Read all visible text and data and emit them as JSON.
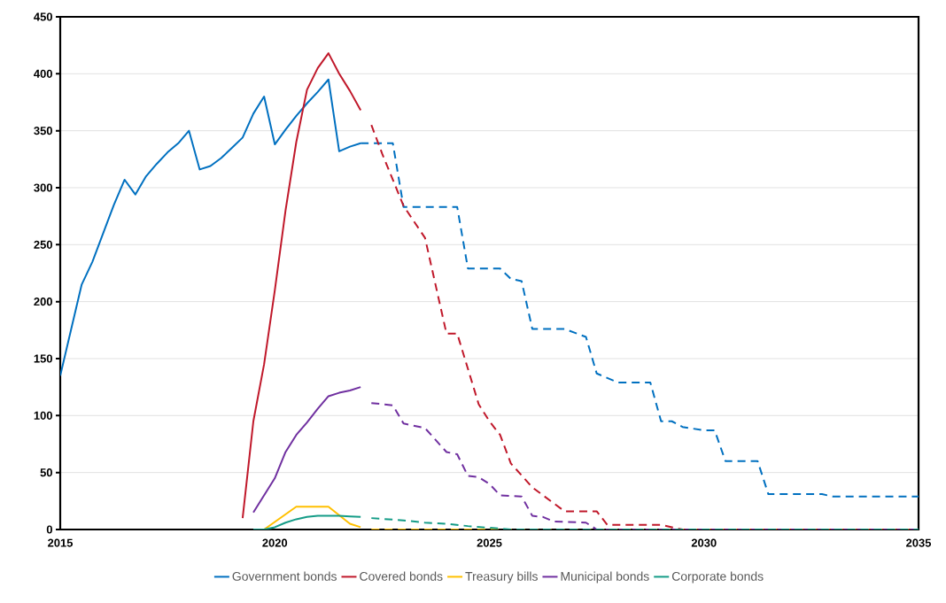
{
  "chart_data": {
    "type": "line",
    "xlim": [
      2015,
      2035
    ],
    "ylim": [
      0,
      450
    ],
    "xticks": [
      2015,
      2020,
      2025,
      2030,
      2035
    ],
    "yticks": [
      0,
      50,
      100,
      150,
      200,
      250,
      300,
      350,
      400,
      450
    ],
    "grid": "y",
    "legend": "bottom",
    "marker": "none",
    "series": [
      {
        "name": "Government bonds",
        "color": "#0070c0",
        "line_style": "solid",
        "x": [
          2015.0,
          2015.25,
          2015.5,
          2015.75,
          2016.0,
          2016.25,
          2016.5,
          2016.75,
          2017.0,
          2017.25,
          2017.5,
          2017.75,
          2018.0,
          2018.25,
          2018.5,
          2018.75,
          2019.0,
          2019.25,
          2019.5,
          2019.75,
          2020.0,
          2020.25,
          2020.5,
          2020.75,
          2021.0,
          2021.25,
          2021.5,
          2021.75,
          2022.0
        ],
        "values": [
          135,
          175,
          215,
          235,
          260,
          285,
          307,
          294,
          310,
          321,
          331,
          339,
          350,
          316,
          319,
          326,
          335,
          344,
          365,
          380,
          338,
          351,
          363,
          374,
          384,
          395,
          332,
          336,
          339
        ]
      },
      {
        "name": "Covered bonds",
        "color": "#c0182a",
        "line_style": "solid",
        "x": [
          2019.25,
          2019.5,
          2019.75,
          2020.0,
          2020.25,
          2020.5,
          2020.75,
          2021.0,
          2021.25,
          2021.5,
          2021.75,
          2022.0
        ],
        "values": [
          10,
          95,
          145,
          210,
          280,
          340,
          386,
          405,
          418,
          400,
          385,
          368
        ]
      },
      {
        "name": "Treasury bills",
        "color": "#ffc000",
        "line_style": "solid",
        "x": [
          2019.75,
          2020.5,
          2021.25,
          2021.75,
          2022.0
        ],
        "values": [
          0,
          20,
          20,
          5,
          2
        ]
      },
      {
        "name": "Municipal bonds",
        "color": "#7030a0",
        "line_style": "solid",
        "x": [
          2019.5,
          2019.75,
          2020.0,
          2020.25,
          2020.5,
          2020.75,
          2021.0,
          2021.25,
          2021.5,
          2021.75,
          2022.0
        ],
        "values": [
          15,
          30,
          45,
          68,
          83,
          94,
          106,
          117,
          120,
          122,
          125
        ]
      },
      {
        "name": "Corporate bonds",
        "color": "#149c87",
        "line_style": "solid",
        "x": [
          2019.5,
          2019.75,
          2020.0,
          2020.25,
          2020.5,
          2020.75,
          2021.0,
          2021.25,
          2021.5,
          2021.75,
          2022.0
        ],
        "values": [
          0,
          0,
          2,
          6,
          9,
          11,
          12,
          12,
          12,
          11.5,
          11
        ]
      },
      {
        "color": "#0070c0",
        "line_style": "dashed",
        "x": [
          2022.0,
          2022.75,
          2023.0,
          2024.25,
          2024.5,
          2025.25,
          2025.5,
          2025.75,
          2026.0,
          2026.75,
          2027.25,
          2027.5,
          2028.0,
          2028.75,
          2029.0,
          2029.25,
          2029.5,
          2030.0,
          2030.25,
          2030.5,
          2031.25,
          2031.5,
          2032.75,
          2033.0,
          2035.0
        ],
        "values": [
          339,
          339,
          283,
          283,
          229,
          229,
          220,
          218,
          176,
          176,
          169,
          137,
          129,
          129,
          95,
          95,
          90,
          87,
          87,
          60,
          60,
          31,
          31,
          29,
          29
        ]
      },
      {
        "color": "#c0182a",
        "line_style": "dashed",
        "x": [
          2022.25,
          2022.5,
          2023.0,
          2023.5,
          2024.0,
          2024.25,
          2024.75,
          2025.0,
          2025.25,
          2025.5,
          2026.0,
          2026.75,
          2027.5,
          2027.75,
          2029.0,
          2029.5,
          2035.0
        ],
        "values": [
          355,
          330,
          284,
          256,
          172,
          172,
          110,
          95,
          83,
          58,
          37,
          16,
          16,
          4,
          4,
          0,
          0
        ]
      },
      {
        "color": "#ffc000",
        "line_style": "dashed",
        "x": [
          2022.25,
          2035.0
        ],
        "values": [
          0,
          0
        ]
      },
      {
        "color": "#7030a0",
        "line_style": "dashed",
        "x": [
          2022.25,
          2022.75,
          2023.0,
          2023.5,
          2024.0,
          2024.25,
          2024.5,
          2024.75,
          2025.0,
          2025.25,
          2025.75,
          2026.0,
          2026.25,
          2026.5,
          2027.25,
          2027.5,
          2035.0
        ],
        "values": [
          111,
          109,
          93,
          89,
          68,
          66,
          47,
          46,
          40,
          30,
          29,
          12,
          11,
          7,
          6,
          0,
          0
        ]
      },
      {
        "color": "#149c87",
        "line_style": "dashed",
        "x": [
          2022.25,
          2023.0,
          2023.5,
          2024.0,
          2024.5,
          2025.0,
          2025.5,
          2035.0
        ],
        "values": [
          10,
          8,
          6,
          5,
          3,
          1.5,
          0,
          0
        ]
      }
    ]
  }
}
